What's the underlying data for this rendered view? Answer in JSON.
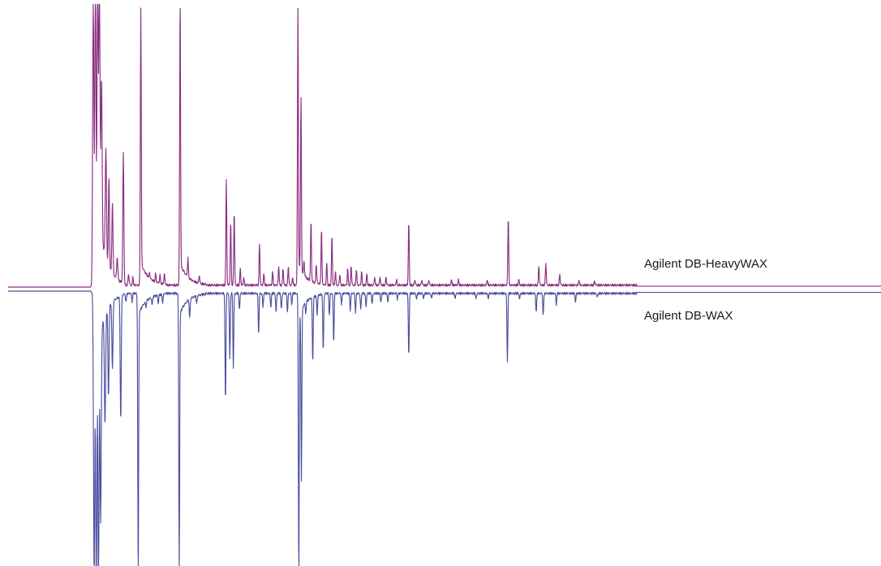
{
  "chart_data": {
    "type": "line",
    "title": "",
    "xlabel": "",
    "ylabel": "",
    "grid": false,
    "layout": "mirror",
    "x_range": [
      0,
      100
    ],
    "y_range": [
      0,
      100
    ],
    "series": [
      {
        "name": "Agilent DB-HeavyWAX",
        "color": "#8a2e82",
        "orientation": "up",
        "baseline_drift": 0.6,
        "peaks": [
          [
            9.75,
            100,
            0.07
          ],
          [
            10.0,
            100,
            0.07
          ],
          [
            10.25,
            100,
            0.06
          ],
          [
            10.45,
            95,
            0.07
          ],
          [
            10.7,
            58,
            0.07
          ],
          [
            11.2,
            40,
            0.07
          ],
          [
            11.55,
            32,
            0.06
          ],
          [
            11.95,
            26,
            0.06
          ],
          [
            12.5,
            8,
            0.06
          ],
          [
            13.2,
            47,
            0.06
          ],
          [
            13.8,
            4,
            0.06
          ],
          [
            14.3,
            3,
            0.05
          ],
          [
            15.2,
            100,
            0.05
          ],
          [
            16.2,
            2,
            0.05
          ],
          [
            16.9,
            3,
            0.05
          ],
          [
            17.4,
            3,
            0.05
          ],
          [
            17.9,
            4,
            0.05
          ],
          [
            19.7,
            100,
            0.05
          ],
          [
            20.6,
            7,
            0.05
          ],
          [
            21.9,
            3,
            0.05
          ],
          [
            25.0,
            38,
            0.05
          ],
          [
            25.5,
            23,
            0.05
          ],
          [
            25.9,
            27,
            0.05
          ],
          [
            26.6,
            6,
            0.05
          ],
          [
            27.0,
            3,
            0.05
          ],
          [
            28.8,
            15,
            0.05
          ],
          [
            29.3,
            4,
            0.05
          ],
          [
            30.3,
            5,
            0.05
          ],
          [
            31.0,
            7,
            0.05
          ],
          [
            31.5,
            6,
            0.05
          ],
          [
            32.1,
            7,
            0.05
          ],
          [
            32.6,
            3,
            0.05
          ],
          [
            33.2,
            100,
            0.05
          ],
          [
            33.55,
            63,
            0.05
          ],
          [
            33.9,
            5,
            0.05
          ],
          [
            34.7,
            22,
            0.05
          ],
          [
            35.3,
            7,
            0.05
          ],
          [
            35.9,
            20,
            0.05
          ],
          [
            36.5,
            8,
            0.05
          ],
          [
            37.1,
            18,
            0.05
          ],
          [
            37.5,
            5,
            0.05
          ],
          [
            38.0,
            4,
            0.05
          ],
          [
            38.9,
            6,
            0.05
          ],
          [
            39.3,
            7,
            0.05
          ],
          [
            39.9,
            6,
            0.05
          ],
          [
            40.5,
            5,
            0.05
          ],
          [
            41.1,
            4,
            0.05
          ],
          [
            42.0,
            3,
            0.05
          ],
          [
            42.6,
            3,
            0.05
          ],
          [
            43.3,
            3,
            0.05
          ],
          [
            44.5,
            2,
            0.05
          ],
          [
            45.9,
            23,
            0.05
          ],
          [
            46.6,
            2,
            0.05
          ],
          [
            47.4,
            2,
            0.05
          ],
          [
            48.2,
            2,
            0.05
          ],
          [
            50.8,
            2,
            0.05
          ],
          [
            51.6,
            2,
            0.05
          ],
          [
            54.9,
            2,
            0.05
          ],
          [
            57.3,
            25,
            0.05
          ],
          [
            58.5,
            2,
            0.05
          ],
          [
            60.8,
            7,
            0.05
          ],
          [
            61.6,
            8,
            0.05
          ],
          [
            63.2,
            4,
            0.05
          ],
          [
            65.4,
            2,
            0.05
          ],
          [
            67.2,
            1.5,
            0.05
          ]
        ]
      },
      {
        "name": "Agilent DB-WAX",
        "color": "#4c4f9e",
        "orientation": "down",
        "baseline_drift": -0.9,
        "peaks": [
          [
            9.85,
            100,
            0.07
          ],
          [
            10.1,
            100,
            0.07
          ],
          [
            10.35,
            100,
            0.06
          ],
          [
            10.6,
            70,
            0.07
          ],
          [
            11.1,
            40,
            0.07
          ],
          [
            11.5,
            33,
            0.06
          ],
          [
            11.95,
            25,
            0.06
          ],
          [
            12.9,
            46,
            0.06
          ],
          [
            13.5,
            3,
            0.06
          ],
          [
            14.2,
            3,
            0.05
          ],
          [
            14.9,
            100,
            0.05
          ],
          [
            15.8,
            2,
            0.05
          ],
          [
            16.5,
            3,
            0.05
          ],
          [
            17.2,
            3,
            0.05
          ],
          [
            17.7,
            3,
            0.05
          ],
          [
            19.6,
            100,
            0.05
          ],
          [
            20.8,
            7,
            0.05
          ],
          [
            21.6,
            3,
            0.05
          ],
          [
            24.9,
            40,
            0.05
          ],
          [
            25.4,
            24,
            0.05
          ],
          [
            25.8,
            27,
            0.05
          ],
          [
            26.5,
            6,
            0.05
          ],
          [
            28.7,
            15,
            0.05
          ],
          [
            29.2,
            5,
            0.05
          ],
          [
            30.1,
            5,
            0.05
          ],
          [
            30.7,
            7,
            0.05
          ],
          [
            31.3,
            6,
            0.05
          ],
          [
            32.0,
            7,
            0.05
          ],
          [
            32.5,
            4,
            0.05
          ],
          [
            33.3,
            100,
            0.05
          ],
          [
            33.6,
            63,
            0.05
          ],
          [
            34.1,
            4,
            0.05
          ],
          [
            34.9,
            24,
            0.05
          ],
          [
            35.4,
            7,
            0.05
          ],
          [
            36.1,
            21,
            0.05
          ],
          [
            36.8,
            8,
            0.05
          ],
          [
            37.3,
            18,
            0.05
          ],
          [
            38.2,
            4,
            0.05
          ],
          [
            39.2,
            6,
            0.05
          ],
          [
            39.8,
            7,
            0.05
          ],
          [
            40.4,
            6,
            0.05
          ],
          [
            41.0,
            5,
            0.05
          ],
          [
            41.7,
            4,
            0.05
          ],
          [
            42.7,
            3,
            0.05
          ],
          [
            43.5,
            3,
            0.05
          ],
          [
            44.6,
            2,
            0.05
          ],
          [
            45.9,
            23,
            0.05
          ],
          [
            46.8,
            2,
            0.05
          ],
          [
            47.6,
            2,
            0.05
          ],
          [
            48.5,
            2,
            0.05
          ],
          [
            51.2,
            2,
            0.05
          ],
          [
            53.6,
            2,
            0.05
          ],
          [
            55.0,
            2,
            0.05
          ],
          [
            57.2,
            25,
            0.05
          ],
          [
            58.6,
            2,
            0.05
          ],
          [
            60.5,
            7,
            0.05
          ],
          [
            61.3,
            8,
            0.05
          ],
          [
            62.8,
            4,
            0.05
          ],
          [
            65.0,
            3,
            0.05
          ],
          [
            67.5,
            1.5,
            0.05
          ]
        ]
      }
    ]
  }
}
